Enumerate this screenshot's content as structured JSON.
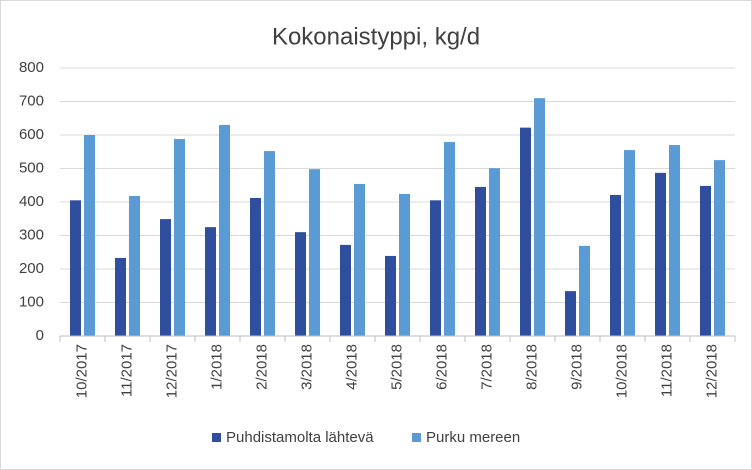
{
  "chart_data": {
    "type": "bar",
    "title": "Kokonaistyppi, kg/d",
    "categories": [
      "10/2017",
      "11/2017",
      "12/2017",
      "1/2018",
      "2/2018",
      "3/2018",
      "4/2018",
      "5/2018",
      "6/2018",
      "7/2018",
      "8/2018",
      "9/2018",
      "10/2018",
      "11/2018",
      "12/2018"
    ],
    "series": [
      {
        "name": "Puhdistamolta lähtevä",
        "color": "#2f4f9e",
        "values": [
          405,
          233,
          349,
          325,
          412,
          310,
          272,
          239,
          405,
          445,
          622,
          134,
          421,
          487,
          448
        ]
      },
      {
        "name": "Purku mereen",
        "color": "#5b9bd5",
        "values": [
          600,
          418,
          588,
          630,
          552,
          498,
          454,
          424,
          579,
          501,
          710,
          269,
          555,
          570,
          525
        ]
      }
    ],
    "ylim": [
      0,
      800
    ],
    "yticks": [
      0,
      100,
      200,
      300,
      400,
      500,
      600,
      700,
      800
    ],
    "grid": true,
    "legend": "bottom"
  }
}
